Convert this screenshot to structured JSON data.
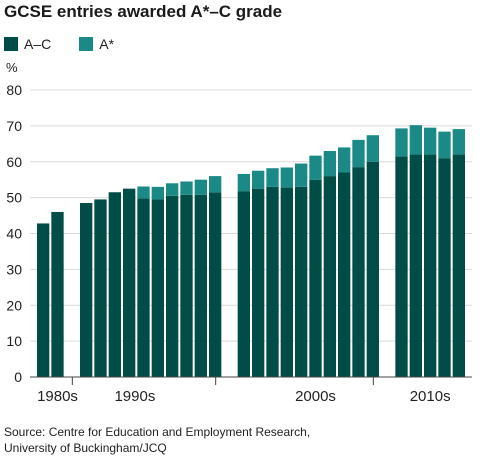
{
  "title": "GCSE entries awarded A*–C grade",
  "source": {
    "line1": "Source: Centre for Education and Employment Research,",
    "line2": "University of Buckingham/JCQ"
  },
  "legend": [
    {
      "name": "A–C",
      "color": "#004d47"
    },
    {
      "name": "A*",
      "color": "#1b8a87"
    }
  ],
  "chart_data": {
    "type": "bar",
    "stacked": true,
    "ylabel": "%",
    "ylim": [
      0,
      80
    ],
    "yticks": [
      0,
      10,
      20,
      30,
      40,
      50,
      60,
      70,
      80
    ],
    "grid": true,
    "decades": [
      "1980s",
      "1990s",
      "2000s",
      "2010s"
    ],
    "series": [
      {
        "name": "A–C",
        "color": "#004d47",
        "values": [
          42.8,
          46.0,
          null,
          48.5,
          49.5,
          51.5,
          52.5,
          49.8,
          49.5,
          50.5,
          50.8,
          50.8,
          51.5,
          null,
          51.8,
          52.5,
          53.0,
          52.8,
          53.0,
          55.0,
          56.0,
          57.0,
          58.5,
          60.0,
          null,
          61.5,
          62.0,
          62.0,
          61.0,
          62.0
        ]
      },
      {
        "name": "A*",
        "color": "#1b8a87",
        "values": [
          0,
          0,
          null,
          0,
          0,
          0,
          0,
          3.3,
          3.5,
          3.5,
          3.7,
          4.2,
          4.5,
          null,
          4.8,
          5.0,
          5.2,
          5.6,
          6.5,
          6.7,
          7.0,
          7.0,
          7.6,
          7.4,
          null,
          7.8,
          8.2,
          7.5,
          7.4,
          7.1
        ]
      }
    ]
  }
}
